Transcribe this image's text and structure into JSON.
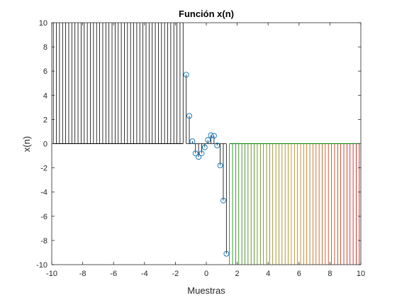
{
  "chart_data": {
    "type": "stem",
    "title": "Función x(n)",
    "xlabel": "Muestras",
    "ylabel": "x(n)",
    "xlim": [
      -10,
      10
    ],
    "ylim": [
      -10,
      10
    ],
    "xticks": [
      "-10",
      "-8",
      "-6",
      "-4",
      "-2",
      "0",
      "2",
      "4",
      "6",
      "8",
      "10"
    ],
    "yticks": [
      "10",
      "8",
      "6",
      "4",
      "2",
      "0",
      "-2",
      "-4",
      "-6",
      "-8",
      "-10"
    ],
    "grid": false,
    "box": true,
    "colors": {
      "positive_stems": "#000000",
      "negative_stems_start": "#008000",
      "negative_stems_mid": "#C08000",
      "negative_stems_end": "#C00000",
      "markers": "#0072BD",
      "axes": "#262626"
    },
    "series": [
      {
        "role": "clipped-stems-positive",
        "x_start": -9.9,
        "x_end": -1.5,
        "x_step": 0.2,
        "y": 10
      },
      {
        "role": "clipped-stems-negative",
        "x_start": 1.5,
        "x_end": 9.9,
        "x_step": 0.2,
        "y": -10
      },
      {
        "role": "marked-samples",
        "marker": "circle",
        "points": [
          [
            -1.3,
            5.7
          ],
          [
            -1.1,
            2.3
          ],
          [
            -0.9,
            0.2
          ],
          [
            -0.7,
            -0.8
          ],
          [
            -0.5,
            -1.1
          ],
          [
            -0.3,
            -0.8
          ],
          [
            -0.1,
            -0.3
          ],
          [
            0.1,
            0.3
          ],
          [
            0.3,
            0.7
          ],
          [
            0.5,
            0.65
          ],
          [
            0.7,
            -0.15
          ],
          [
            0.9,
            -1.8
          ],
          [
            1.1,
            -4.7
          ],
          [
            1.3,
            -9.1
          ]
        ]
      }
    ]
  }
}
